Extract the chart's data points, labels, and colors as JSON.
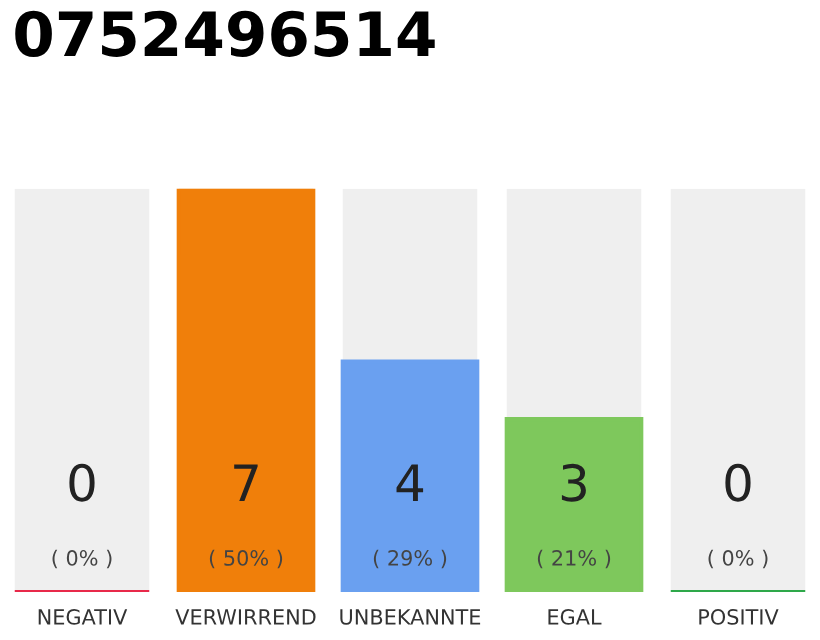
{
  "chart_data": {
    "type": "bar",
    "title": "0752496514",
    "categories": [
      "NEGATIV",
      "VERWIRREND",
      "UNBEKANNTE",
      "EGAL",
      "POSITIV"
    ],
    "values": [
      0,
      7,
      4,
      3,
      0
    ],
    "colors": [
      "#e8294a",
      "#f07f0a",
      "#6aa0f0",
      "#7ec85c",
      "#2ea84a"
    ],
    "value_labels": [
      "0\n( 0% )",
      "7\n( 50% )",
      "4\n( 29% )",
      "3\n( 21% )",
      "0\n( 0% )"
    ],
    "grid": false,
    "legend": false
  }
}
